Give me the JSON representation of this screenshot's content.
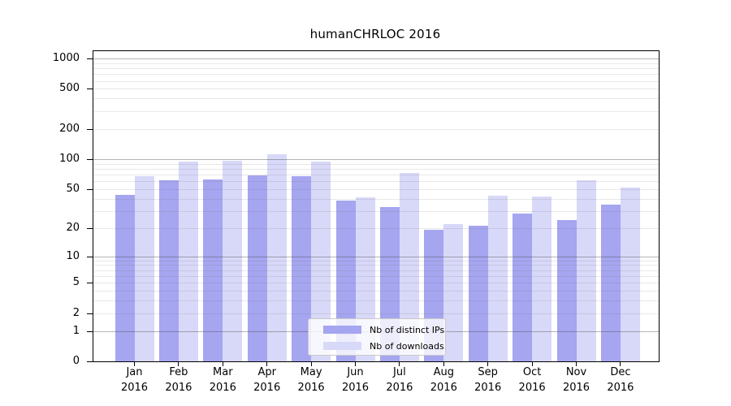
{
  "chart_data": {
    "type": "bar",
    "title": "humanCHRLOC 2016",
    "categories": [
      "Jan",
      "Feb",
      "Mar",
      "Apr",
      "May",
      "Jun",
      "Jul",
      "Aug",
      "Sep",
      "Oct",
      "Nov",
      "Dec"
    ],
    "category_year": "2016",
    "series": [
      {
        "name": "Nb of distinct IPs",
        "color": "#a5a5f0",
        "values": [
          44,
          61,
          62,
          68,
          67,
          38,
          33,
          19,
          21,
          28,
          24,
          35
        ]
      },
      {
        "name": "Nb of downloads",
        "color": "#d8d8f8",
        "values": [
          67,
          94,
          96,
          112,
          94,
          41,
          73,
          22,
          43,
          42,
          61,
          52
        ]
      }
    ],
    "xlabel": "",
    "ylabel": "",
    "yscale": "log1p",
    "ylim": [
      0,
      1000
    ],
    "yticks": [
      0,
      1,
      2,
      5,
      10,
      20,
      50,
      100,
      200,
      500,
      1000
    ],
    "major_gridlines": [
      1,
      10,
      100,
      1000
    ],
    "minor_gridlines": [
      2,
      3,
      4,
      5,
      6,
      7,
      8,
      9,
      20,
      30,
      40,
      50,
      60,
      70,
      80,
      90,
      200,
      300,
      400,
      500,
      600,
      700,
      800,
      900
    ],
    "grid": true,
    "legend_position": "lower center",
    "bar_border": "none"
  }
}
